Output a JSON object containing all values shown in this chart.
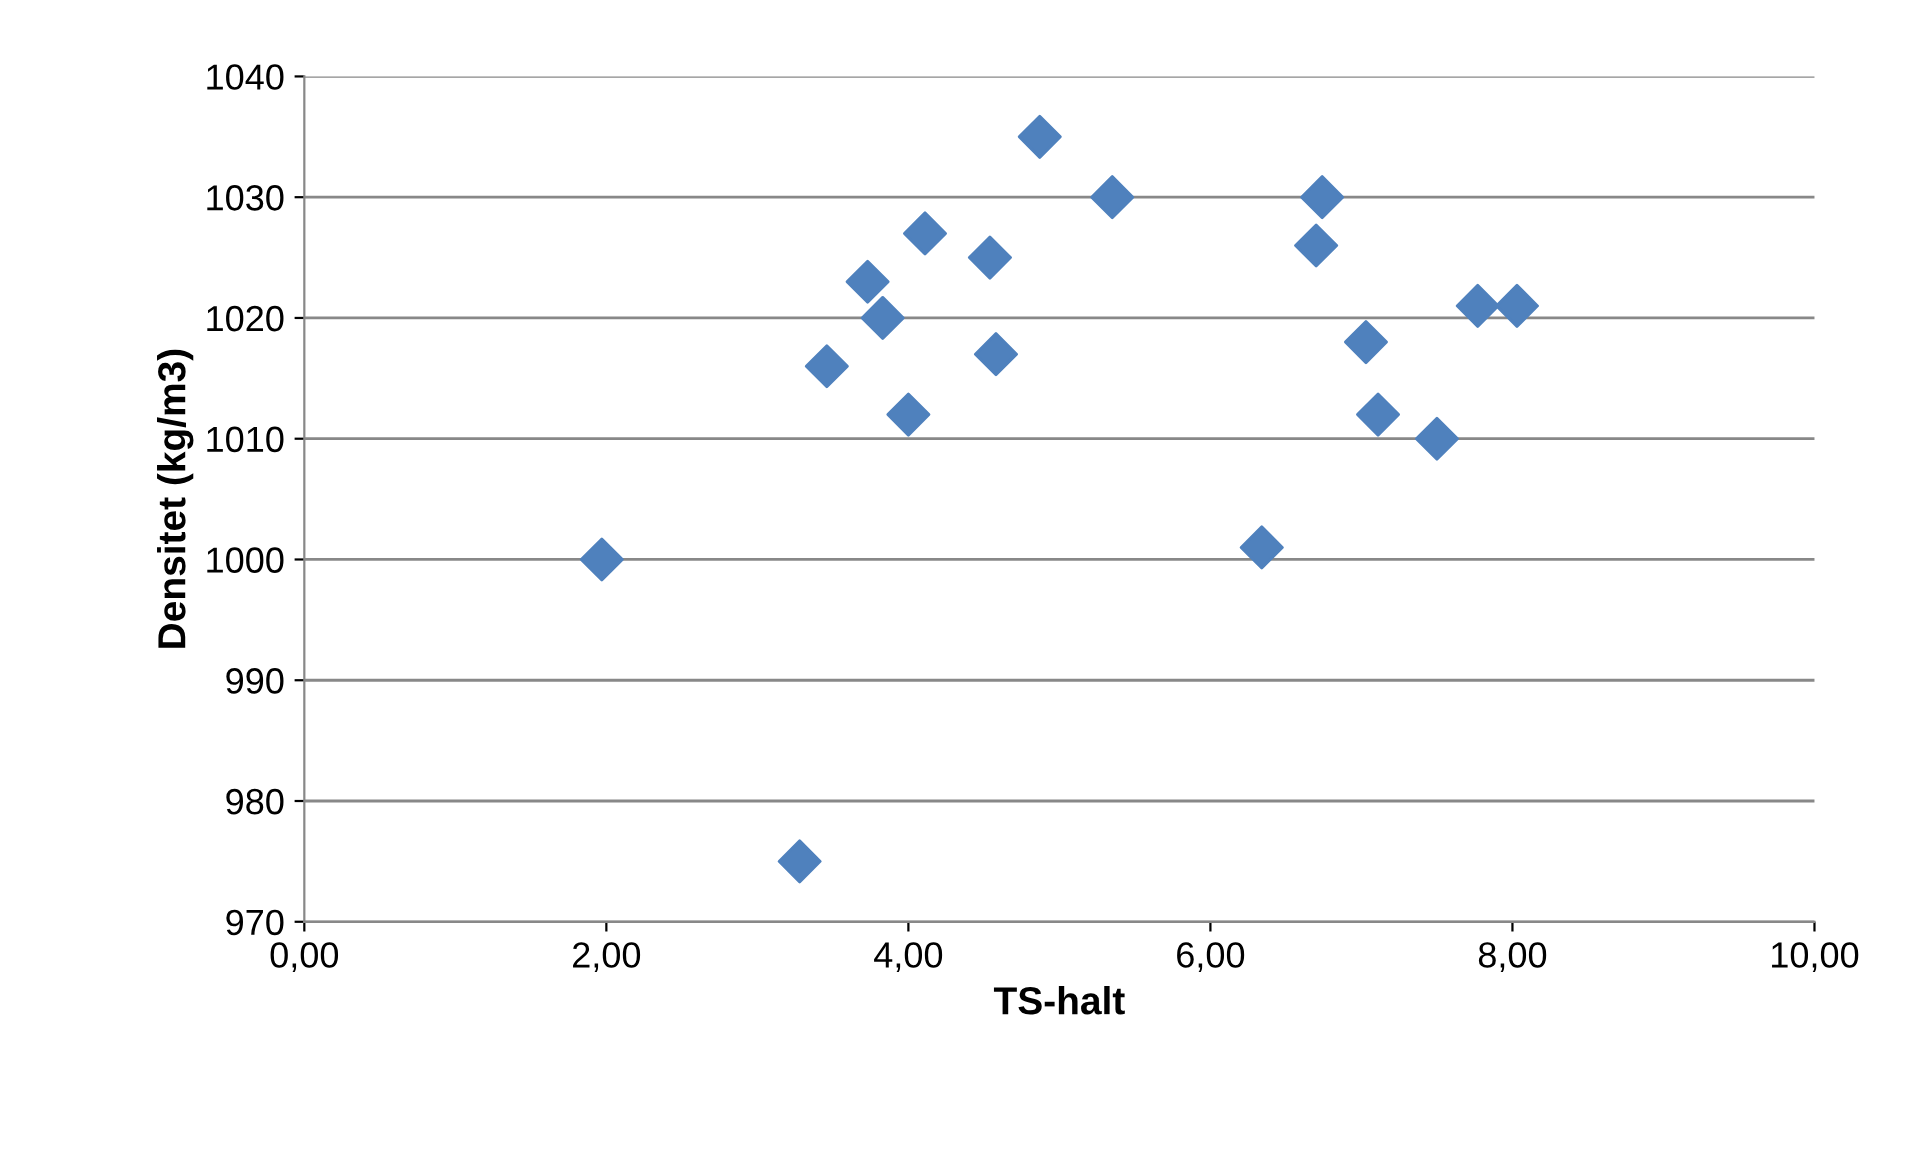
{
  "chart_data": {
    "type": "scatter",
    "xlabel": "TS-halt",
    "ylabel": "Densitet (kg/m3)",
    "x": [
      1.97,
      3.28,
      3.46,
      3.73,
      3.83,
      4.0,
      4.11,
      4.54,
      4.58,
      4.87,
      5.35,
      6.34,
      6.7,
      6.74,
      7.03,
      7.11,
      7.5,
      7.77,
      8.03
    ],
    "series": [
      {
        "color": "#4f81bd",
        "values": [
          1000,
          975,
          1016,
          1023,
          1020,
          1012,
          1027,
          1025,
          1017,
          1035,
          1030,
          1001,
          1026,
          1030,
          1018,
          1012,
          1010,
          1021,
          1021
        ]
      }
    ],
    "xlim": [
      0,
      10
    ],
    "xticks": [
      {
        "value": 0,
        "label": "0,00"
      },
      {
        "value": 2,
        "label": "2,00"
      },
      {
        "value": 4,
        "label": "4,00"
      },
      {
        "value": 6,
        "label": "6,00"
      },
      {
        "value": 8,
        "label": "8,00"
      },
      {
        "value": 10,
        "label": "10,00"
      }
    ],
    "ylim": [
      970,
      1040
    ],
    "yticks": [
      970,
      980,
      990,
      1000,
      1010,
      1020,
      1030,
      1040
    ],
    "grid": "y",
    "marker": "diamond",
    "legend": false
  }
}
